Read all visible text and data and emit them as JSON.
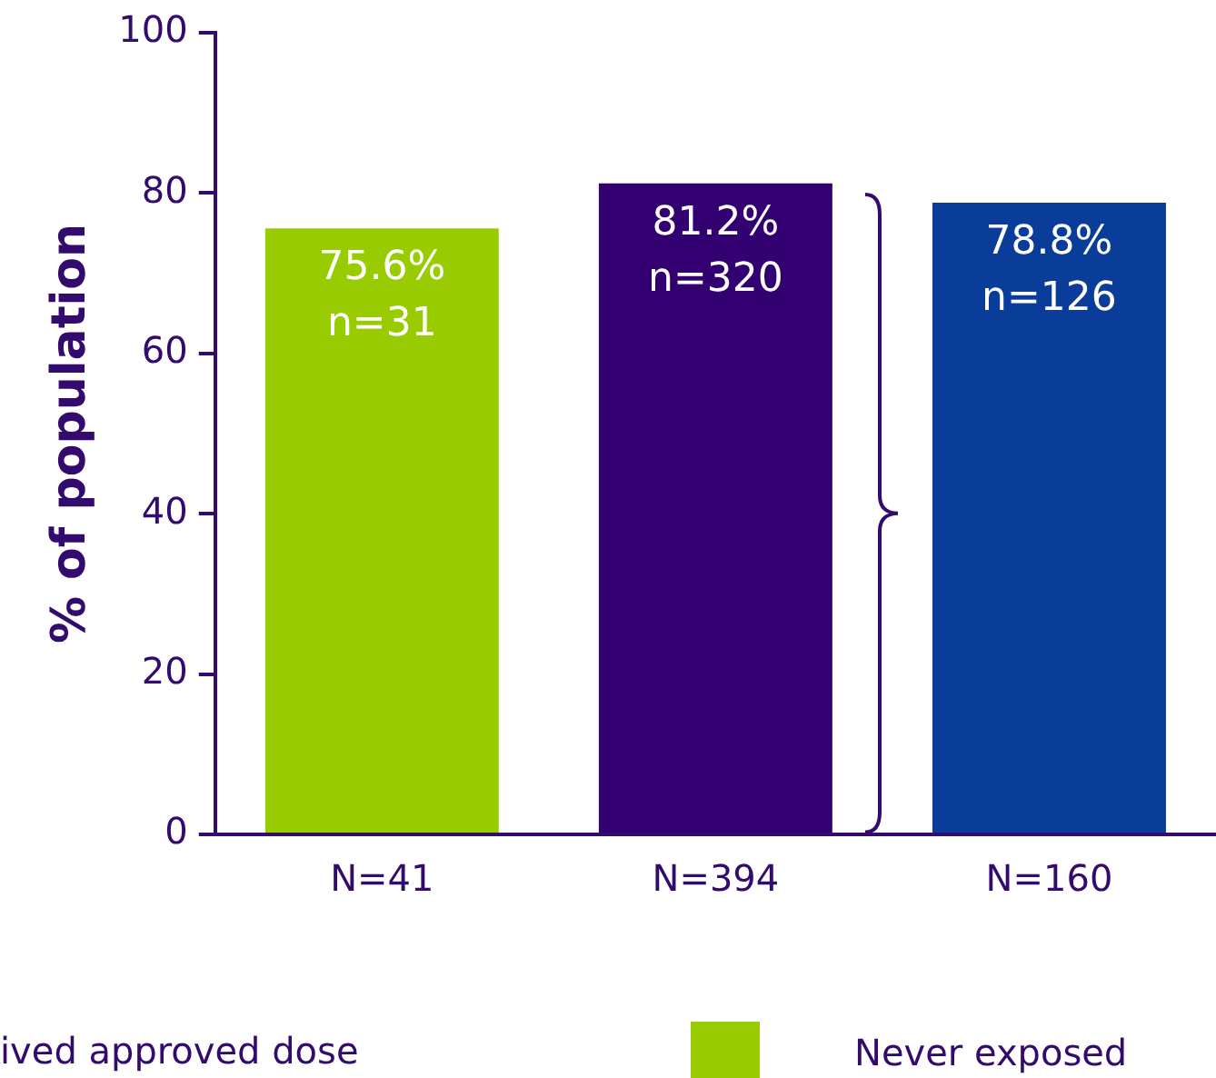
{
  "chart_data": {
    "type": "bar",
    "ylabel": "% of population",
    "categories": [
      "N=41",
      "N=394",
      "N=160"
    ],
    "series": [
      {
        "name": "Never exposed",
        "color": "#99cc00",
        "values": [
          75.6,
          null,
          null
        ],
        "value_labels": [
          "75.6%\nn=31",
          null,
          null
        ]
      },
      {
        "color": "#330072",
        "values": [
          null,
          81.2,
          null
        ],
        "value_labels": [
          null,
          "81.2%\nn=320",
          null
        ]
      },
      {
        "color": "#0a3c9a",
        "values": [
          null,
          null,
          78.8
        ],
        "value_labels": [
          null,
          null,
          "78.8%\nn=126"
        ]
      }
    ],
    "ylim": [
      0,
      100
    ],
    "yticks": [
      0,
      20,
      40,
      60,
      80,
      100
    ],
    "grid": false,
    "legend": "bottom",
    "annotations": [
      "ived approved dose"
    ]
  }
}
